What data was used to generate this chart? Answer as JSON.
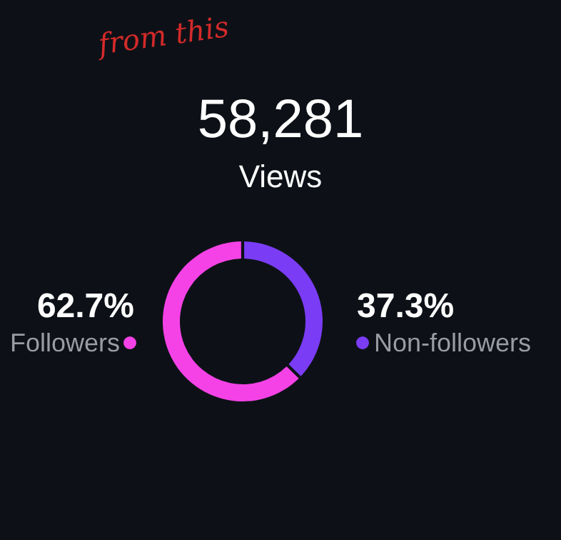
{
  "chart_data": {
    "type": "donut",
    "title": "58,281",
    "subtitle": "Views",
    "annotations": [
      "from this"
    ],
    "categories": [
      "Followers",
      "Non-followers"
    ],
    "values": [
      62.7,
      37.3
    ],
    "colors": [
      "#f542e6",
      "#7b3cf5"
    ],
    "value_labels": [
      "62.7%",
      "37.3%"
    ]
  }
}
